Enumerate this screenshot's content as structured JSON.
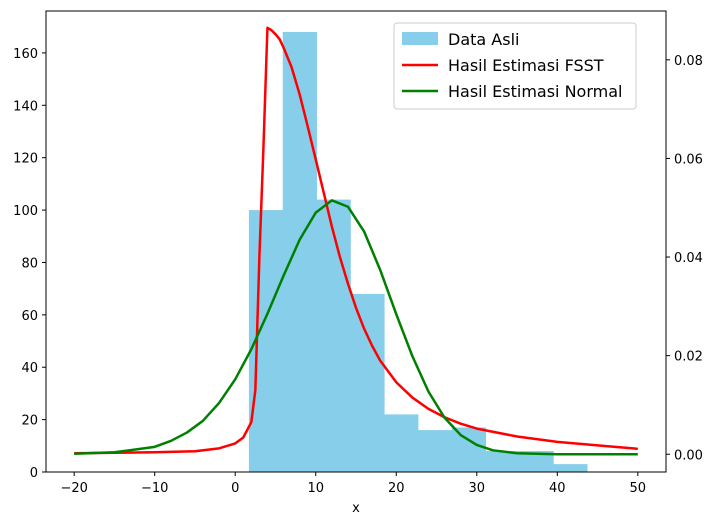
{
  "chart_data": {
    "type": "bar",
    "xlabel": "x",
    "ylabel": "",
    "ylabel_right": "",
    "xlim": [
      -23.5,
      53.5
    ],
    "ylim": [
      0,
      176
    ],
    "ylim_right": [
      -0.0036,
      0.0899
    ],
    "x_ticks": [
      -20,
      -10,
      0,
      10,
      20,
      30,
      40,
      50
    ],
    "y_ticks": [
      0,
      20,
      40,
      60,
      80,
      100,
      120,
      140,
      160
    ],
    "y_ticks_right": [
      0.0,
      0.02,
      0.04,
      0.06,
      0.08
    ],
    "y_tick_labels_right": [
      "0.00",
      "0.02",
      "0.04",
      "0.06",
      "0.08"
    ],
    "grid": false,
    "legend_position": "top-right",
    "histogram": {
      "name": "Data Asli",
      "color": "#87ceeb",
      "axis": "left",
      "bin_edges": [
        1.7,
        5.9,
        10.1,
        14.3,
        18.5,
        22.7,
        26.9,
        31.1,
        35.3,
        39.5,
        43.7
      ],
      "counts": [
        100,
        168,
        104,
        68,
        22,
        16,
        17,
        8,
        8,
        3
      ]
    },
    "series": [
      {
        "name": "Hasil Estimasi FSST",
        "color": "#ff0000",
        "axis": "right",
        "x": [
          -20,
          -15,
          -10,
          -5,
          -2,
          0,
          1,
          2,
          2.5,
          3,
          3.5,
          4,
          4.5,
          5,
          5.5,
          6,
          7,
          8,
          9,
          10,
          11,
          12,
          13,
          14,
          15,
          16,
          17,
          18,
          20,
          22,
          24,
          26,
          28,
          30,
          35,
          40,
          45,
          50
        ],
        "y": [
          0.0002,
          0.0003,
          0.0004,
          0.0006,
          0.0012,
          0.0022,
          0.0034,
          0.0065,
          0.013,
          0.04,
          0.062,
          0.0865,
          0.086,
          0.0852,
          0.0842,
          0.0825,
          0.0785,
          0.073,
          0.0665,
          0.0598,
          0.053,
          0.0462,
          0.04,
          0.0346,
          0.0297,
          0.0255,
          0.022,
          0.019,
          0.0146,
          0.0115,
          0.0092,
          0.0075,
          0.0062,
          0.0052,
          0.0036,
          0.0025,
          0.0018,
          0.0011
        ]
      },
      {
        "name": "Hasil Estimasi Normal",
        "color": "#008000",
        "axis": "right",
        "x": [
          -20,
          -15,
          -10,
          -8,
          -6,
          -4,
          -2,
          0,
          2,
          4,
          6,
          8,
          10,
          12,
          14,
          16,
          18,
          20,
          22,
          24,
          26,
          28,
          30,
          32,
          35,
          40,
          45,
          50
        ],
        "y": [
          0.0001,
          0.0004,
          0.0015,
          0.0027,
          0.0044,
          0.0068,
          0.0104,
          0.0152,
          0.0213,
          0.0285,
          0.0362,
          0.0435,
          0.049,
          0.0515,
          0.0502,
          0.0452,
          0.0374,
          0.0284,
          0.0199,
          0.0127,
          0.0074,
          0.0039,
          0.0019,
          0.0008,
          0.0002,
          0.0,
          0.0,
          0.0
        ]
      }
    ]
  }
}
